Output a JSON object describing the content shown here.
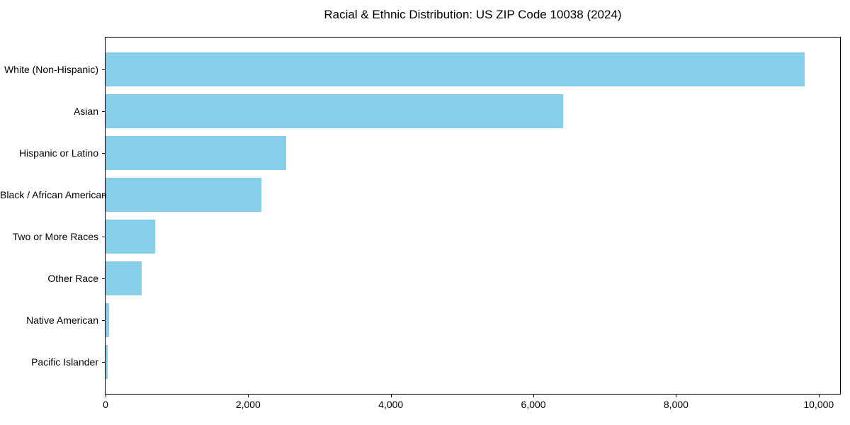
{
  "title": "Racial & Ethnic Distribution: US ZIP Code 10038 (2024)",
  "colors": {
    "bar": "#87CEEB",
    "axis": "#000000",
    "background": "#FFFFFF",
    "text": "#000000"
  },
  "chart_data": {
    "type": "bar",
    "orientation": "horizontal",
    "title": "Racial & Ethnic Distribution: US ZIP Code 10038 (2024)",
    "categories": [
      "White (Non-Hispanic)",
      "Asian",
      "Hispanic or Latino",
      "Black / African American",
      "Two or More Races",
      "Other Race",
      "Native American",
      "Pacific Islander"
    ],
    "values": [
      9800,
      6420,
      2530,
      2190,
      700,
      510,
      50,
      25
    ],
    "bar_color": "#87CEEB",
    "xlabel": "",
    "ylabel": "",
    "xlim": [
      0,
      10300
    ],
    "x_ticks": [
      0,
      2000,
      4000,
      6000,
      8000,
      10000
    ],
    "x_tick_labels": [
      "0",
      "2,000",
      "4,000",
      "6,000",
      "8,000",
      "10,000"
    ],
    "grid": false,
    "legend": false,
    "frame": "full-box"
  }
}
